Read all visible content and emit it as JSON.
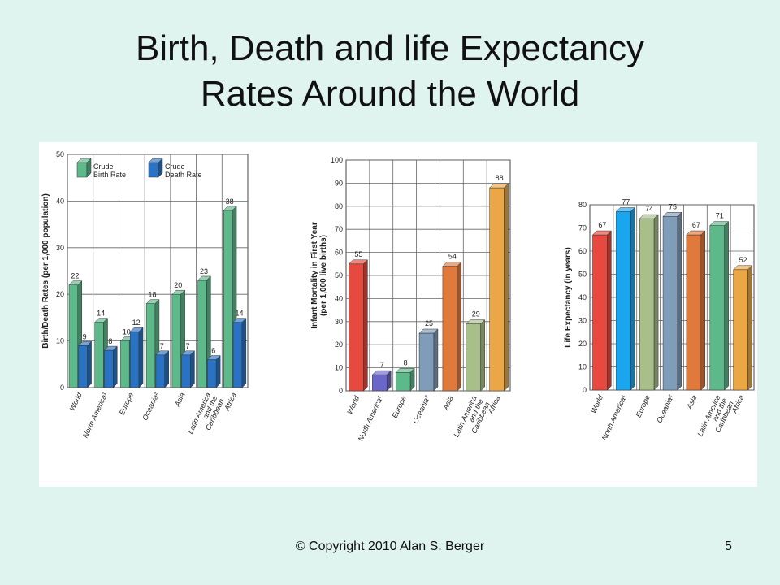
{
  "slide": {
    "title_line1": "Birth, Death and life Expectancy",
    "title_line2": "Rates Around the World",
    "footer": "© Copyright 2010 Alan S. Berger",
    "page_number": "5"
  },
  "chart_data": [
    {
      "type": "bar",
      "ylabel": "Birth/Death Rates (per 1,000 population)",
      "ylim": [
        0,
        50
      ],
      "yticks": [
        0,
        10,
        20,
        30,
        40,
        50
      ],
      "categories": [
        "World",
        "North America¹",
        "Europe",
        "Oceania²",
        "Asia",
        "Latin America and the Caribbean",
        "Africa"
      ],
      "series": [
        {
          "name": "Crude Birth Rate",
          "color": "#5db88a",
          "values": [
            22,
            14,
            10,
            18,
            20,
            23,
            38
          ]
        },
        {
          "name": "Crude Death Rate",
          "color": "#2a73c4",
          "values": [
            9,
            8,
            12,
            7,
            7,
            6,
            14
          ]
        }
      ],
      "legend": "top-left",
      "grid": true
    },
    {
      "type": "bar",
      "ylabel": "Infant Mortality in First Year (per 1,000 live births)",
      "ylim": [
        0,
        100
      ],
      "yticks": [
        0,
        10,
        20,
        30,
        40,
        50,
        60,
        70,
        80,
        90,
        100
      ],
      "categories": [
        "World",
        "North America¹",
        "Europe",
        "Oceania²",
        "Asia",
        "Latin America and the Caribbean",
        "Africa"
      ],
      "values": [
        55,
        7,
        8,
        25,
        54,
        29,
        88
      ],
      "colors": [
        "#e8493f",
        "#6b66c9",
        "#5db88a",
        "#7f9cb8",
        "#e07a3c",
        "#a9bf8a",
        "#eba745"
      ],
      "grid": true
    },
    {
      "type": "bar",
      "ylabel": "Life Expectancy (in years)",
      "ylim": [
        0,
        80
      ],
      "yticks": [
        0,
        10,
        20,
        30,
        40,
        50,
        60,
        70,
        80
      ],
      "categories": [
        "World",
        "North America¹",
        "Europe",
        "Oceania²",
        "Asia",
        "Latin America and the Caribbean",
        "Africa"
      ],
      "values": [
        67,
        77,
        74,
        75,
        67,
        71,
        52
      ],
      "colors": [
        "#e8493f",
        "#1aa6ee",
        "#a9bf8a",
        "#7f9cb8",
        "#e07a3c",
        "#5db88a",
        "#eba745"
      ],
      "grid": true
    }
  ]
}
